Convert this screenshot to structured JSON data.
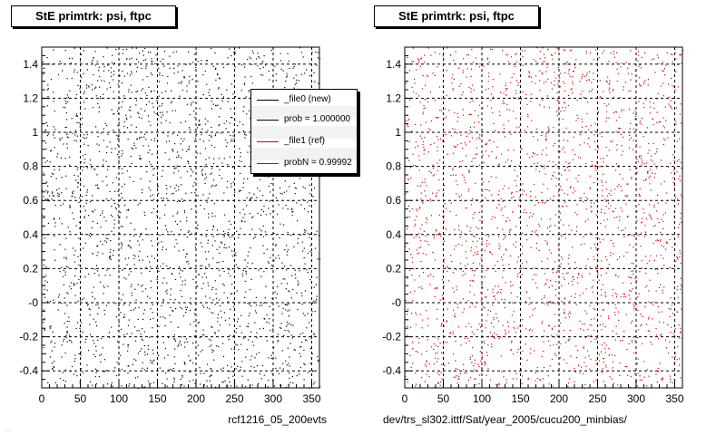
{
  "panels": [
    {
      "title": "StE primtrk: psi, ftpc",
      "footer": "rcf1216_05_200evts",
      "marker_color": "#000000"
    },
    {
      "title": "StE primtrk: psi, ftpc",
      "footer": "dev/trs_sl302.ittf/Sat/year_2005/cucu200_minbias/",
      "marker_color": "#d40000"
    }
  ],
  "stamp": "... ",
  "legend": {
    "entries": [
      {
        "label": "_file0 (new)",
        "color": "#000000"
      },
      {
        "label": "prob = 1.000000",
        "color": "#000000"
      },
      {
        "label": "_file1 (ref)",
        "color": "#d40000"
      },
      {
        "label": "probN = 0.99992",
        "color": "#d40000"
      }
    ]
  },
  "chart_data": [
    {
      "type": "scatter",
      "title": "StE primtrk: psi, ftpc",
      "xlabel": "",
      "ylabel": "",
      "xlim": [
        0,
        360
      ],
      "ylim": [
        -0.5,
        1.5
      ],
      "x_ticks": [
        0,
        50,
        100,
        150,
        200,
        250,
        300,
        350
      ],
      "y_ticks": [
        -0.4,
        -0.2,
        0,
        0.2,
        0.4,
        0.6,
        0.8,
        1,
        1.2,
        1.4
      ],
      "y_tick_labels": [
        "-0.4",
        "-0.2",
        "-0",
        "0.2",
        "0.4",
        "0.6",
        "0.8",
        "1",
        "1.2",
        "1.4"
      ],
      "grid": true,
      "series": [
        {
          "name": "_file0 (new)",
          "color": "#000000",
          "distribution": "approximately uniform over the full plot range"
        }
      ]
    },
    {
      "type": "scatter",
      "title": "StE primtrk: psi, ftpc",
      "xlabel": "",
      "ylabel": "",
      "xlim": [
        0,
        360
      ],
      "ylim": [
        -0.5,
        1.5
      ],
      "x_ticks": [
        0,
        50,
        100,
        150,
        200,
        250,
        300,
        350
      ],
      "y_ticks": [
        -0.4,
        -0.2,
        0,
        0.2,
        0.4,
        0.6,
        0.8,
        1,
        1.2,
        1.4
      ],
      "y_tick_labels": [
        "-0.4",
        "-0.2",
        "-0",
        "0.2",
        "0.4",
        "0.6",
        "0.8",
        "1",
        "1.2",
        "1.4"
      ],
      "grid": true,
      "series": [
        {
          "name": "_file1 (ref)",
          "color": "#d40000",
          "distribution": "approximately uniform over the full plot range"
        }
      ]
    }
  ]
}
